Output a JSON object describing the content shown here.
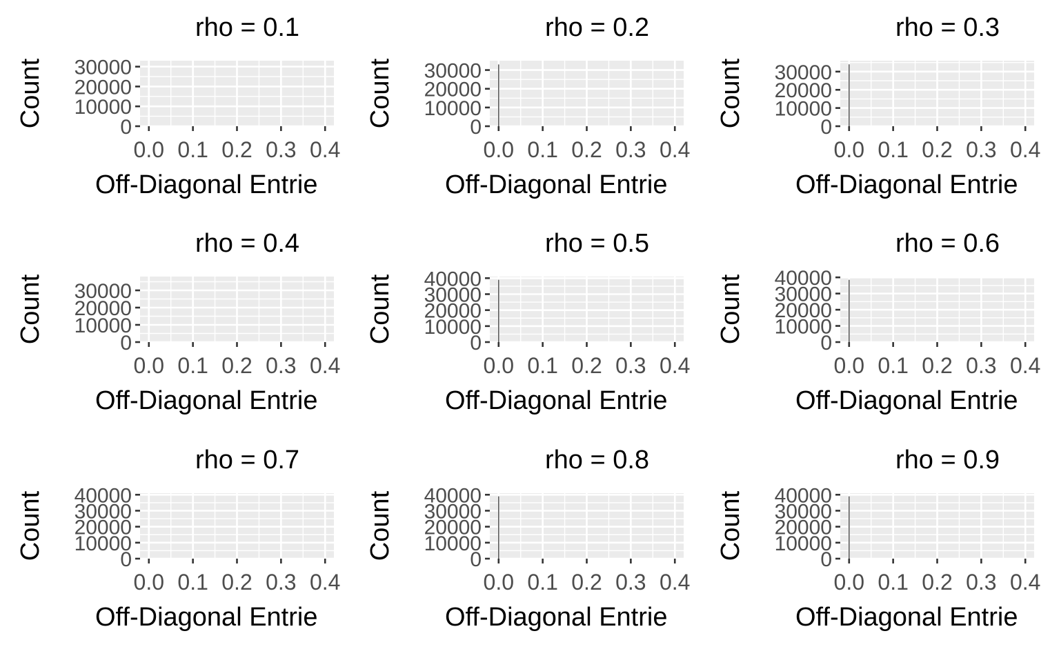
{
  "chart_data": [
    {
      "type": "bar",
      "title": "rho =  0.1",
      "xlabel": "Off-Diagonal Entrie",
      "ylabel": "Count",
      "xlim": [
        -0.02,
        0.42
      ],
      "ylim": [
        0,
        33000
      ],
      "x_ticks": [
        "0.0",
        "0.1",
        "0.2",
        "0.3",
        "0.4"
      ],
      "y_ticks": [
        "0",
        "10000",
        "20000",
        "30000"
      ],
      "values": [],
      "grid": true
    },
    {
      "type": "bar",
      "title": "rho =  0.2",
      "xlabel": "Off-Diagonal Entrie",
      "ylabel": "Count",
      "xlim": [
        -0.02,
        0.42
      ],
      "ylim": [
        0,
        35000
      ],
      "x_ticks": [
        "0.0",
        "0.1",
        "0.2",
        "0.3",
        "0.4"
      ],
      "y_ticks": [
        "0",
        "10000",
        "20000",
        "30000"
      ],
      "values": [
        {
          "x": 0.0,
          "count": 33000
        }
      ],
      "grid": true
    },
    {
      "type": "bar",
      "title": "rho =  0.3",
      "xlabel": "Off-Diagonal Entrie",
      "ylabel": "Count",
      "xlim": [
        -0.02,
        0.42
      ],
      "ylim": [
        0,
        36000
      ],
      "x_ticks": [
        "0.0",
        "0.1",
        "0.2",
        "0.3",
        "0.4"
      ],
      "y_ticks": [
        "0",
        "10000",
        "20000",
        "30000"
      ],
      "values": [
        {
          "x": 0.0,
          "count": 34000
        }
      ],
      "grid": true
    },
    {
      "type": "bar",
      "title": "rho =  0.4",
      "xlabel": "Off-Diagonal Entrie",
      "ylabel": "Count",
      "xlim": [
        -0.02,
        0.42
      ],
      "ylim": [
        0,
        38000
      ],
      "x_ticks": [
        "0.0",
        "0.1",
        "0.2",
        "0.3",
        "0.4"
      ],
      "y_ticks": [
        "0",
        "10000",
        "20000",
        "30000"
      ],
      "values": [],
      "grid": true
    },
    {
      "type": "bar",
      "title": "rho =  0.5",
      "xlabel": "Off-Diagonal Entrie",
      "ylabel": "Count",
      "xlim": [
        -0.02,
        0.42
      ],
      "ylim": [
        0,
        41000
      ],
      "x_ticks": [
        "0.0",
        "0.1",
        "0.2",
        "0.3",
        "0.4"
      ],
      "y_ticks": [
        "0",
        "10000",
        "20000",
        "30000",
        "40000"
      ],
      "values": [
        {
          "x": 0.0,
          "count": 39000
        }
      ],
      "grid": true
    },
    {
      "type": "bar",
      "title": "rho =  0.6",
      "xlabel": "Off-Diagonal Entrie",
      "ylabel": "Count",
      "xlim": [
        -0.02,
        0.42
      ],
      "ylim": [
        0,
        40500
      ],
      "x_ticks": [
        "0.0",
        "0.1",
        "0.2",
        "0.3",
        "0.4"
      ],
      "y_ticks": [
        "0",
        "10000",
        "20000",
        "30000",
        "40000"
      ],
      "values": [
        {
          "x": 0.0,
          "count": 38500
        }
      ],
      "grid": true
    },
    {
      "type": "bar",
      "title": "rho =  0.7",
      "xlabel": "Off-Diagonal Entrie",
      "ylabel": "Count",
      "xlim": [
        -0.02,
        0.42
      ],
      "ylim": [
        0,
        41000
      ],
      "x_ticks": [
        "0.0",
        "0.1",
        "0.2",
        "0.3",
        "0.4"
      ],
      "y_ticks": [
        "0",
        "10000",
        "20000",
        "30000",
        "40000"
      ],
      "values": [],
      "grid": true
    },
    {
      "type": "bar",
      "title": "rho =  0.8",
      "xlabel": "Off-Diagonal Entrie",
      "ylabel": "Count",
      "xlim": [
        -0.02,
        0.42
      ],
      "ylim": [
        0,
        41000
      ],
      "x_ticks": [
        "0.0",
        "0.1",
        "0.2",
        "0.3",
        "0.4"
      ],
      "y_ticks": [
        "0",
        "10000",
        "20000",
        "30000",
        "40000"
      ],
      "values": [
        {
          "x": 0.0,
          "count": 39000
        }
      ],
      "grid": true
    },
    {
      "type": "bar",
      "title": "rho =  0.9",
      "xlabel": "Off-Diagonal Entrie",
      "ylabel": "Count",
      "xlim": [
        -0.02,
        0.42
      ],
      "ylim": [
        0,
        41000
      ],
      "x_ticks": [
        "0.0",
        "0.1",
        "0.2",
        "0.3",
        "0.4"
      ],
      "y_ticks": [
        "0",
        "10000",
        "20000",
        "30000",
        "40000"
      ],
      "values": [
        {
          "x": 0.0,
          "count": 39000
        }
      ],
      "grid": true
    }
  ],
  "colors": {
    "panel_background": "#ebebeb",
    "grid_major": "#ffffff",
    "bar_fill": "#595959",
    "tick_label": "#4d4d4d",
    "axis_title": "#000000",
    "tick_mark": "#333333"
  }
}
